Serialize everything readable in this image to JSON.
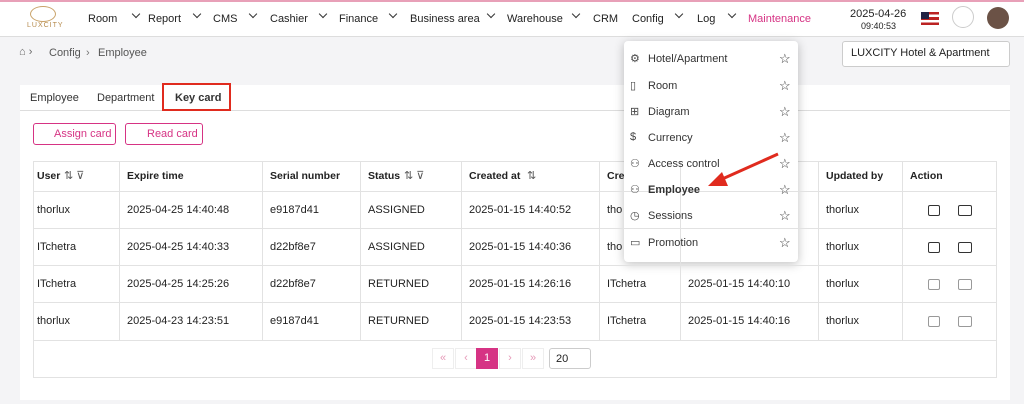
{
  "header": {
    "logo": "LUXCITY",
    "nav": [
      "Room",
      "Report",
      "CMS",
      "Cashier",
      "Finance",
      "Business area",
      "Warehouse",
      "CRM",
      "Config",
      "Log",
      "Maintenance"
    ],
    "date": "2025-04-26",
    "time": "09:40:53"
  },
  "breadcrumb": [
    "Config",
    "Employee"
  ],
  "hotel_select": "LUXCITY Hotel & Apartment",
  "tabs": [
    "Employee",
    "Department",
    "Key card"
  ],
  "buttons": [
    "Assign card",
    "Read card"
  ],
  "table": {
    "columns": [
      "User",
      "Expire time",
      "Serial number",
      "Status",
      "Created at",
      "Cre",
      null,
      "Updated by",
      "Action"
    ],
    "rows": [
      [
        "thorlux",
        "2025-04-25 14:40:48",
        "e9187d41",
        "ASSIGNED",
        "2025-01-15 14:40:52",
        "tho",
        null,
        "thorlux"
      ],
      [
        "ITchetra",
        "2025-04-25 14:40:33",
        "d22bf8e7",
        "ASSIGNED",
        "2025-01-15 14:40:36",
        "tho",
        null,
        "thorlux"
      ],
      [
        "ITchetra",
        "2025-04-25 14:25:26",
        "d22bf8e7",
        "RETURNED",
        "2025-01-15 14:26:16",
        "ITchetra",
        "2025-01-15 14:40:10",
        "thorlux"
      ],
      [
        "thorlux",
        "2025-04-23 14:23:51",
        "e9187d41",
        "RETURNED",
        "2025-01-15 14:23:53",
        "ITchetra",
        "2025-01-15 14:40:16",
        "thorlux"
      ]
    ]
  },
  "pagination": {
    "page": "1",
    "page_size": "20"
  },
  "menu": [
    "Hotel/Apartment",
    "Room",
    "Diagram",
    "Currency",
    "Access control",
    "Employee",
    "Sessions",
    "Promotion"
  ]
}
